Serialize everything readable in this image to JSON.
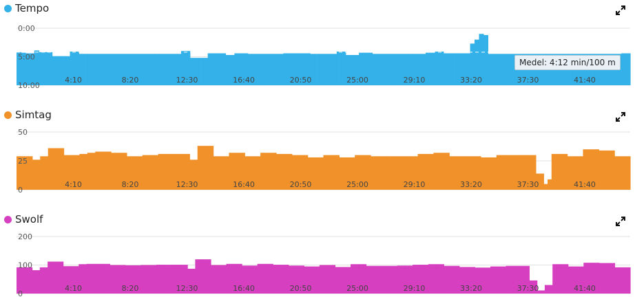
{
  "panels": [
    {
      "title": "Tempo",
      "color": "#33b1e8",
      "icon": "expand-icon",
      "chart_data": {
        "type": "bar",
        "inverted": true,
        "ytick_labels": [
          "0:00",
          "5:00",
          "10:00"
        ],
        "ytick_values": [
          0,
          5,
          10
        ],
        "ylim": [
          0,
          10
        ],
        "avg": 4.2,
        "xtick_labels": [
          "4:10",
          "8:20",
          "12:30",
          "16:40",
          "20:50",
          "25:00",
          "29:10",
          "33:20",
          "37:30",
          "41:40"
        ],
        "xtick_values": [
          250,
          500,
          750,
          1000,
          1250,
          1500,
          1750,
          2000,
          2250,
          2500
        ],
        "x_range": [
          0,
          2700
        ],
        "values": [
          4.2,
          4.3,
          4.4,
          4.4,
          3.9,
          4.2,
          4.2,
          4.2,
          4.9,
          4.9,
          4.9,
          4.9,
          4.1,
          4.1,
          4.5,
          4.5,
          4.5,
          4.5,
          4.5,
          4.5,
          4.5,
          4.5,
          4.5,
          4.5,
          4.5,
          4.5,
          4.5,
          4.5,
          4.5,
          4.5,
          4.5,
          4.5,
          4.5,
          4.5,
          4.5,
          4.5,
          4.5,
          4.0,
          4.0,
          5.2,
          5.2,
          5.2,
          5.2,
          4.4,
          4.4,
          4.4,
          4.4,
          4.7,
          4.7,
          4.4,
          4.4,
          4.4,
          4.5,
          4.5,
          4.5,
          4.5,
          4.5,
          4.5,
          4.5,
          4.5,
          4.4,
          4.4,
          4.4,
          4.4,
          4.4,
          4.4,
          4.5,
          4.5,
          4.5,
          4.5,
          4.5,
          4.5,
          4.1,
          4.1,
          4.7,
          4.7,
          4.7,
          4.3,
          4.3,
          4.3,
          4.5,
          4.5,
          4.5,
          4.5,
          4.5,
          4.5,
          4.5,
          4.5,
          4.5,
          4.5,
          4.5,
          4.5,
          4.3,
          4.3,
          4.1,
          4.1,
          4.4,
          4.4,
          4.4,
          4.4,
          4.4,
          4.4,
          2.7,
          2.0,
          1.0,
          1.2,
          4.5,
          4.5,
          4.5,
          4.5,
          4.5,
          4.5,
          4.5,
          4.5,
          4.5,
          4.5,
          4.5,
          4.5,
          4.5,
          4.5,
          4.5,
          4.5,
          4.5,
          4.5,
          4.5,
          4.5,
          4.5,
          4.5,
          4.5,
          4.5,
          4.5,
          4.5,
          4.5,
          4.5,
          4.5,
          4.5,
          4.4,
          4.4
        ],
        "tooltip": "Medel: 4:12 min/100 m"
      }
    },
    {
      "title": "Simtag",
      "color": "#f0912a",
      "icon": "expand-icon",
      "chart_data": {
        "type": "bar",
        "inverted": false,
        "ytick_labels": [
          "0",
          "25",
          "50"
        ],
        "ytick_values": [
          0,
          25,
          50
        ],
        "ylim": [
          0,
          50
        ],
        "xtick_labels": [
          "4:10",
          "8:20",
          "12:30",
          "16:40",
          "20:50",
          "25:00",
          "29:10",
          "33:20",
          "37:30",
          "41:40"
        ],
        "xtick_values": [
          250,
          500,
          750,
          1000,
          1250,
          1500,
          1750,
          2000,
          2250,
          2500
        ],
        "x_range": [
          0,
          2700
        ],
        "values": [
          29,
          29,
          26,
          29,
          36,
          36,
          30,
          30,
          31,
          32,
          33,
          33,
          32,
          32,
          29,
          29,
          30,
          30,
          31,
          31,
          31,
          31,
          26,
          38,
          38,
          29,
          29,
          32,
          32,
          29,
          29,
          32,
          32,
          31,
          31,
          30,
          30,
          28,
          28,
          30,
          30,
          28,
          28,
          30,
          30,
          29,
          29,
          29,
          29,
          29,
          29,
          31,
          31,
          32,
          32,
          29,
          29,
          29,
          29,
          28,
          28,
          30,
          30,
          30,
          30,
          30,
          14,
          5,
          9,
          31,
          31,
          29,
          29,
          35,
          35,
          34,
          34,
          29,
          29
        ],
        "widths": [
          1,
          1,
          1,
          1,
          1,
          1,
          1,
          1,
          1,
          1,
          1,
          1,
          1,
          1,
          1,
          1,
          1,
          1,
          1,
          1,
          1,
          1,
          1,
          1,
          1,
          1,
          1,
          1,
          1,
          1,
          1,
          1,
          1,
          1,
          1,
          1,
          1,
          1,
          1,
          1,
          1,
          1,
          1,
          1,
          1,
          1,
          1,
          1,
          1,
          1,
          1,
          1,
          1,
          1,
          1,
          1,
          1,
          1,
          1,
          1,
          1,
          1,
          1,
          1,
          1,
          1,
          1,
          0.5,
          0.5,
          1,
          1,
          1,
          1,
          1,
          1,
          1,
          1,
          1,
          1
        ]
      }
    },
    {
      "title": "Swolf",
      "color": "#d63fbf",
      "icon": "expand-icon",
      "chart_data": {
        "type": "bar",
        "inverted": false,
        "ytick_labels": [
          "0",
          "100",
          "200"
        ],
        "ytick_values": [
          0,
          100,
          200
        ],
        "ylim": [
          0,
          200
        ],
        "xtick_labels": [
          "4:10",
          "8:20",
          "12:30",
          "16:40",
          "20:50",
          "25:00",
          "29:10",
          "33:20",
          "37:30",
          "41:40"
        ],
        "xtick_values": [
          250,
          500,
          750,
          1000,
          1250,
          1500,
          1750,
          2000,
          2250,
          2500
        ],
        "x_range": [
          0,
          2700
        ],
        "values": [
          92,
          92,
          82,
          92,
          112,
          112,
          96,
          96,
          103,
          104,
          104,
          104,
          100,
          100,
          99,
          99,
          100,
          100,
          101,
          101,
          101,
          101,
          87,
          120,
          120,
          100,
          100,
          104,
          104,
          98,
          98,
          104,
          104,
          101,
          101,
          98,
          98,
          95,
          95,
          100,
          100,
          93,
          93,
          103,
          103,
          97,
          97,
          97,
          97,
          98,
          98,
          101,
          101,
          103,
          103,
          97,
          97,
          93,
          93,
          91,
          91,
          95,
          95,
          97,
          97,
          97,
          46,
          11,
          30,
          103,
          103,
          95,
          95,
          108,
          108,
          107,
          107,
          92,
          92
        ]
      }
    }
  ]
}
